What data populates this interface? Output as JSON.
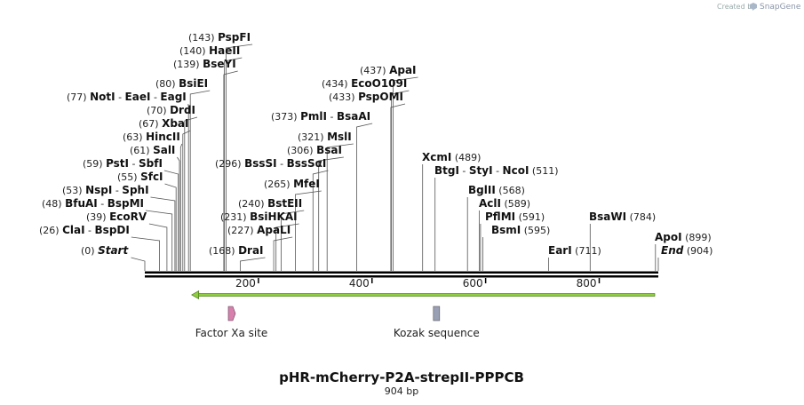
{
  "credit": {
    "prefix": "Created by",
    "brand": "SnapGene"
  },
  "sequence": {
    "length": 904
  },
  "title": {
    "name": "pHR-mCherry-P2A-strepII-PPPCB",
    "length_label": "904 bp"
  },
  "ticks": [
    {
      "pos": 200,
      "label": "200"
    },
    {
      "pos": 400,
      "label": "400"
    },
    {
      "pos": 600,
      "label": "600"
    },
    {
      "pos": 800,
      "label": "800"
    }
  ],
  "enzyme_rows": [
    {
      "pos_label": "(143)",
      "names": [
        "PspFI"
      ],
      "cut": [
        143
      ]
    },
    {
      "pos_label": "(140)",
      "names": [
        "HaeII"
      ],
      "cut": [
        140
      ]
    },
    {
      "pos_label": "(139)",
      "names": [
        "BseYI"
      ],
      "cut": [
        139
      ]
    },
    {
      "pos_label": "(80)",
      "names": [
        "BsiEI"
      ],
      "cut": [
        80
      ]
    },
    {
      "pos_label": "(77)",
      "names": [
        "NotI",
        "EaeI",
        "EagI"
      ],
      "cut": [
        77
      ]
    },
    {
      "pos_label": "(70)",
      "names": [
        "DrdI"
      ],
      "cut": [
        70
      ]
    },
    {
      "pos_label": "(67)",
      "names": [
        "XbaI"
      ],
      "cut": [
        67
      ]
    },
    {
      "pos_label": "(63)",
      "names": [
        "HincII"
      ],
      "cut": [
        63
      ]
    },
    {
      "pos_label": "(61)",
      "names": [
        "SalI"
      ],
      "cut": [
        61
      ]
    },
    {
      "pos_label": "(59)",
      "names": [
        "PstI",
        "SbfI"
      ],
      "cut": [
        59
      ]
    },
    {
      "pos_label": "(55)",
      "names": [
        "SfcI"
      ],
      "cut": [
        55
      ]
    },
    {
      "pos_label": "(53)",
      "names": [
        "NspI",
        "SphI"
      ],
      "cut": [
        53
      ]
    },
    {
      "pos_label": "(48)",
      "names": [
        "BfuAI",
        "BspMI"
      ],
      "cut": [
        48
      ]
    },
    {
      "pos_label": "(39)",
      "names": [
        "EcoRV"
      ],
      "cut": [
        39
      ]
    },
    {
      "pos_label": "(26)",
      "names": [
        "ClaI",
        "BspDI"
      ],
      "cut": [
        26
      ]
    },
    {
      "pos_label": "(0)",
      "names": [
        "Start"
      ],
      "cut": [
        0
      ],
      "italic": true
    },
    {
      "pos_label": "(168)",
      "names": [
        "DraI"
      ],
      "cut": [
        168
      ]
    },
    {
      "pos_label": "(227)",
      "names": [
        "ApaLI"
      ],
      "cut": [
        227
      ]
    },
    {
      "pos_label": "(231)",
      "names": [
        "BsiHKAI"
      ],
      "cut": [
        231
      ]
    },
    {
      "pos_label": "(240)",
      "names": [
        "BstEII"
      ],
      "cut": [
        240
      ]
    },
    {
      "pos_label": "(265)",
      "names": [
        "MfeI"
      ],
      "cut": [
        265
      ]
    },
    {
      "pos_label": "(296)",
      "names": [
        "BssSI",
        "BssSαI"
      ],
      "cut": [
        296
      ]
    },
    {
      "pos_label": "(306)",
      "names": [
        "BsaI"
      ],
      "cut": [
        306
      ]
    },
    {
      "pos_label": "(321)",
      "names": [
        "MslI"
      ],
      "cut": [
        321
      ]
    },
    {
      "pos_label": "(373)",
      "names": [
        "PmlI",
        "BsaAI"
      ],
      "cut": [
        373
      ]
    },
    {
      "pos_label": "(433)",
      "names": [
        "PspOMI"
      ],
      "cut": [
        433
      ]
    },
    {
      "pos_label": "(434)",
      "names": [
        "EcoO109I"
      ],
      "cut": [
        434
      ]
    },
    {
      "pos_label": "(437)",
      "names": [
        "ApaI"
      ],
      "cut": [
        437
      ]
    },
    {
      "pos_label": "(489)",
      "names": [
        "XcmI"
      ],
      "cut": [
        489
      ],
      "pos_after": true
    },
    {
      "pos_label": "(511)",
      "names": [
        "BtgI",
        "StyI",
        "NcoI"
      ],
      "cut": [
        511
      ],
      "pos_after": true
    },
    {
      "pos_label": "(568)",
      "names": [
        "BglII"
      ],
      "cut": [
        568
      ],
      "pos_after": true
    },
    {
      "pos_label": "(589)",
      "names": [
        "AclI"
      ],
      "cut": [
        589
      ],
      "pos_after": true
    },
    {
      "pos_label": "(591)",
      "names": [
        "PflMI"
      ],
      "cut": [
        591
      ],
      "pos_after": true
    },
    {
      "pos_label": "(595)",
      "names": [
        "BsmI"
      ],
      "cut": [
        595
      ],
      "pos_after": true
    },
    {
      "pos_label": "(711)",
      "names": [
        "EarI"
      ],
      "cut": [
        711
      ],
      "pos_after": true
    },
    {
      "pos_label": "(784)",
      "names": [
        "BsaWI"
      ],
      "cut": [
        784
      ],
      "pos_after": true
    },
    {
      "pos_label": "(899)",
      "names": [
        "ApoI"
      ],
      "cut": [
        899
      ],
      "pos_after": true
    },
    {
      "pos_label": "(904)",
      "names": [
        "End"
      ],
      "cut": [
        904
      ],
      "pos_after": true,
      "italic": true
    }
  ],
  "features": [
    {
      "name": "Factor Xa site",
      "start": 147,
      "end": 158,
      "color": "#d97fae",
      "shape": "arrow"
    },
    {
      "name": "Kozak sequence",
      "start": 509,
      "end": 518,
      "color": "#9aa0b4",
      "shape": "box"
    }
  ],
  "orf": {
    "start": 84,
    "end": 904,
    "color": "#8fce3c"
  },
  "colors": {
    "backbone": "#000000",
    "leader": "#555555"
  }
}
